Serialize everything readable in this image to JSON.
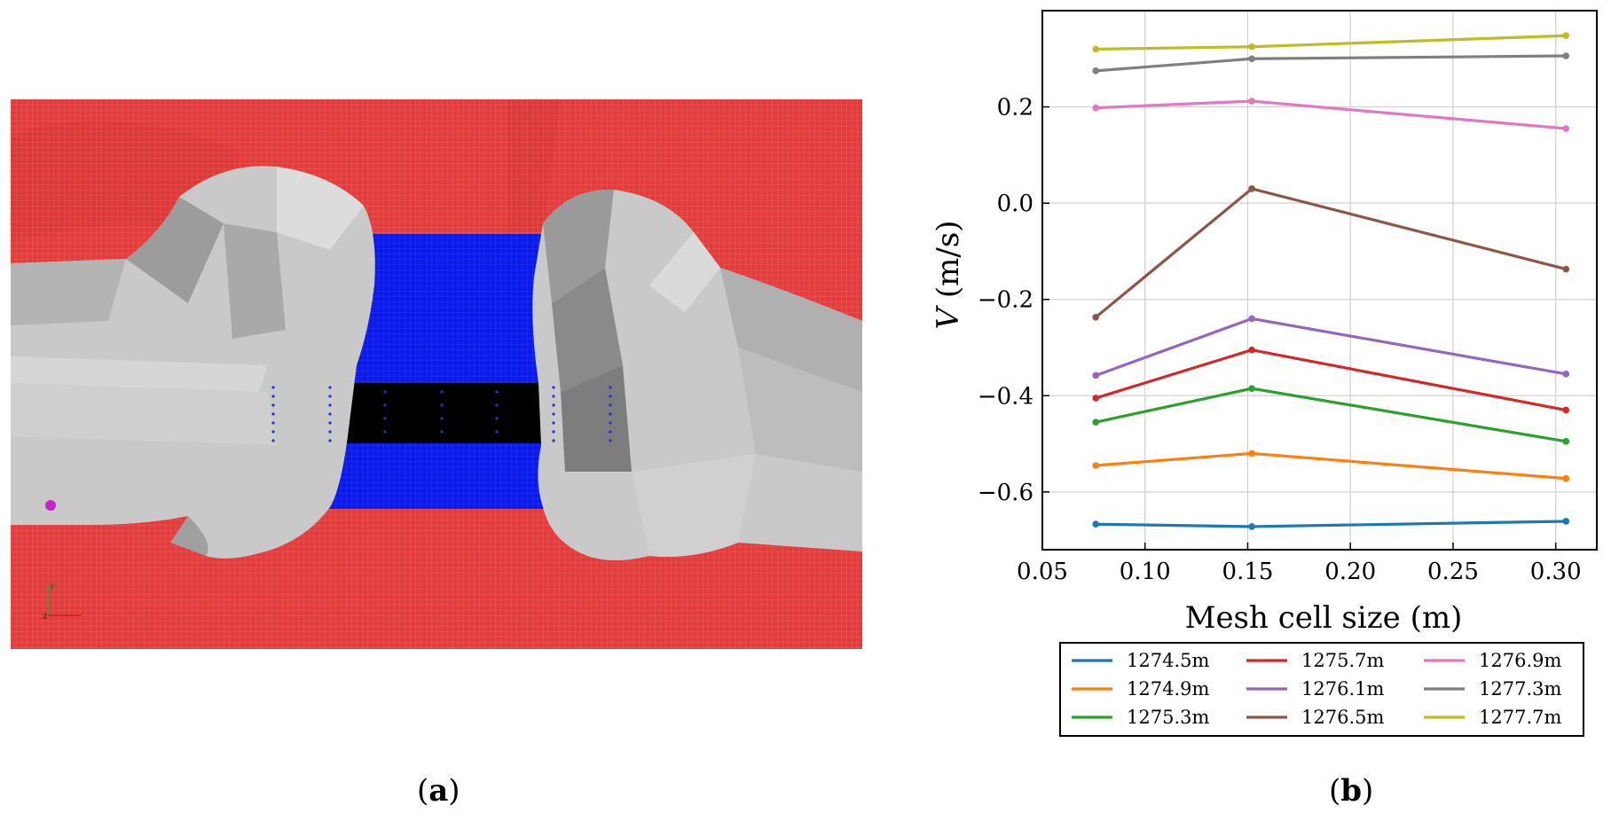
{
  "captions": {
    "a": "a",
    "b": "b"
  },
  "colors": {
    "background_red": "#e63b3b",
    "channel_blue": "#0a1aee",
    "rock_gray": "#c9c9c9",
    "marker_magenta": "#cc22cc"
  },
  "panel_a": {
    "axis_labels": {
      "y": "y",
      "z": "z"
    }
  },
  "chart_data": {
    "type": "line",
    "title": "",
    "xlabel": "Mesh cell size (m)",
    "ylabel": "V (m/s)",
    "ylabel_italic": "V",
    "ylabel_rest": " (m/s)",
    "xlim": [
      0.05,
      0.32
    ],
    "ylim": [
      -0.72,
      0.4
    ],
    "xticks": [
      0.05,
      0.1,
      0.15,
      0.2,
      0.25,
      0.3
    ],
    "xtick_labels": [
      "0.05",
      "0.10",
      "0.15",
      "0.20",
      "0.25",
      "0.30"
    ],
    "yticks": [
      -0.6,
      -0.4,
      -0.2,
      0.0,
      0.2
    ],
    "ytick_labels": [
      "−0.6",
      "−0.4",
      "−0.2",
      "0.0",
      "0.2"
    ],
    "grid": true,
    "legend_position": "below",
    "x": [
      0.076,
      0.152,
      0.305
    ],
    "series": [
      {
        "name": "1274.5m",
        "color": "#1f77b4",
        "values": [
          -0.667,
          -0.672,
          -0.661
        ]
      },
      {
        "name": "1274.9m",
        "color": "#ff7f0e",
        "values": [
          -0.545,
          -0.52,
          -0.572
        ]
      },
      {
        "name": "1275.3m",
        "color": "#2ca02c",
        "values": [
          -0.455,
          -0.385,
          -0.495
        ]
      },
      {
        "name": "1275.7m",
        "color": "#d62728",
        "values": [
          -0.405,
          -0.305,
          -0.43
        ]
      },
      {
        "name": "1276.1m",
        "color": "#9467bd",
        "values": [
          -0.358,
          -0.24,
          -0.355
        ]
      },
      {
        "name": "1276.5m",
        "color": "#8c564b",
        "values": [
          -0.237,
          0.03,
          -0.137
        ]
      },
      {
        "name": "1276.9m",
        "color": "#e377c2",
        "values": [
          0.198,
          0.212,
          0.155
        ]
      },
      {
        "name": "1277.3m",
        "color": "#7f7f7f",
        "values": [
          0.275,
          0.3,
          0.306
        ]
      },
      {
        "name": "1277.7m",
        "color": "#bcbd22",
        "values": [
          0.32,
          0.325,
          0.348
        ]
      }
    ]
  }
}
